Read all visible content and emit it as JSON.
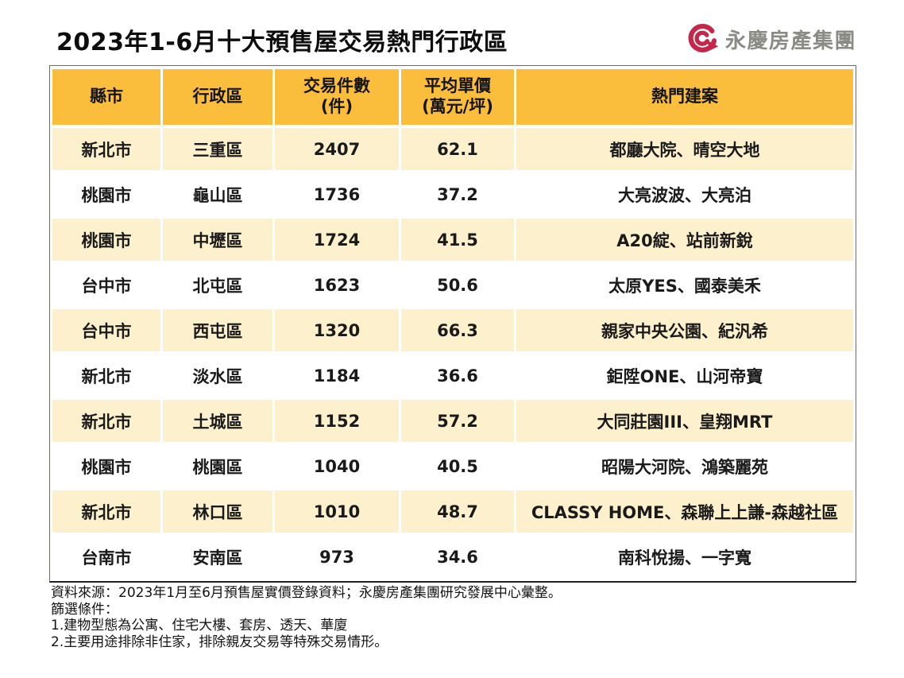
{
  "page": {
    "title": "2023年1-6月十大預售屋交易熱門行政區",
    "logo_text": "永慶房產集團"
  },
  "colors": {
    "header_bg": "#FBBD3C",
    "row_alt_bg": "#FCF0CD",
    "row_bg": "#FFFFFF",
    "logo_red": "#C5274A",
    "logo_text_gray": "#8B8B86"
  },
  "table": {
    "headers": [
      {
        "line1": "縣市",
        "line2": ""
      },
      {
        "line1": "行政區",
        "line2": ""
      },
      {
        "line1": "交易件數",
        "line2": "(件)"
      },
      {
        "line1": "平均單價",
        "line2": "(萬元/坪)"
      },
      {
        "line1": "熱門建案",
        "line2": ""
      }
    ],
    "rows": [
      [
        "新北市",
        "三重區",
        "2407",
        "62.1",
        "都廳大院、晴空大地"
      ],
      [
        "桃園市",
        "龜山區",
        "1736",
        "37.2",
        "大亮波波、大亮泊"
      ],
      [
        "桃園市",
        "中壢區",
        "1724",
        "41.5",
        "A20綻、站前新銳"
      ],
      [
        "台中市",
        "北屯區",
        "1623",
        "50.6",
        "太原YES、國泰美禾"
      ],
      [
        "台中市",
        "西屯區",
        "1320",
        "66.3",
        "親家中央公園、紀汎希"
      ],
      [
        "新北市",
        "淡水區",
        "1184",
        "36.6",
        "鉅陞ONE、山河帝寶"
      ],
      [
        "新北市",
        "土城區",
        "1152",
        "57.2",
        "大同莊園III、皇翔MRT"
      ],
      [
        "桃園市",
        "桃園區",
        "1040",
        "40.5",
        "昭陽大河院、鴻築麗苑"
      ],
      [
        "新北市",
        "林口區",
        "1010",
        "48.7",
        "CLASSY HOME、森聯上上謙-森越社區"
      ],
      [
        "台南市",
        "安南區",
        "973",
        "34.6",
        "南科悅揚、一字寬"
      ]
    ]
  },
  "footnotes": {
    "line1": "資料來源：2023年1月至6月預售屋實價登錄資料；永慶房產集團研究發展中心彙整。",
    "line2": "篩選條件：",
    "line3": "1.建物型態為公寓、住宅大樓、套房、透天、華廈",
    "line4": "2.主要用途排除非住家，排除親友交易等特殊交易情形。"
  },
  "chart_data": {
    "type": "table",
    "title": "2023年1-6月十大預售屋交易熱門行政區",
    "columns": [
      "縣市",
      "行政區",
      "交易件數(件)",
      "平均單價(萬元/坪)",
      "熱門建案"
    ],
    "rows": [
      [
        "新北市",
        "三重區",
        2407,
        62.1,
        "都廳大院、晴空大地"
      ],
      [
        "桃園市",
        "龜山區",
        1736,
        37.2,
        "大亮波波、大亮泊"
      ],
      [
        "桃園市",
        "中壢區",
        1724,
        41.5,
        "A20綻、站前新銳"
      ],
      [
        "台中市",
        "北屯區",
        1623,
        50.6,
        "太原YES、國泰美禾"
      ],
      [
        "台中市",
        "西屯區",
        1320,
        66.3,
        "親家中央公園、紀汎希"
      ],
      [
        "新北市",
        "淡水區",
        1184,
        36.6,
        "鉅陞ONE、山河帝寶"
      ],
      [
        "新北市",
        "土城區",
        1152,
        57.2,
        "大同莊園III、皇翔MRT"
      ],
      [
        "桃園市",
        "桃園區",
        1040,
        40.5,
        "昭陽大河院、鴻築麗苑"
      ],
      [
        "新北市",
        "林口區",
        1010,
        48.7,
        "CLASSY HOME、森聯上上謙-森越社區"
      ],
      [
        "台南市",
        "安南區",
        973,
        34.6,
        "南科悅揚、一字寬"
      ]
    ],
    "source_note": "資料來源：2023年1月至6月預售屋實價登錄資料；永慶房產集團研究發展中心彙整。"
  }
}
